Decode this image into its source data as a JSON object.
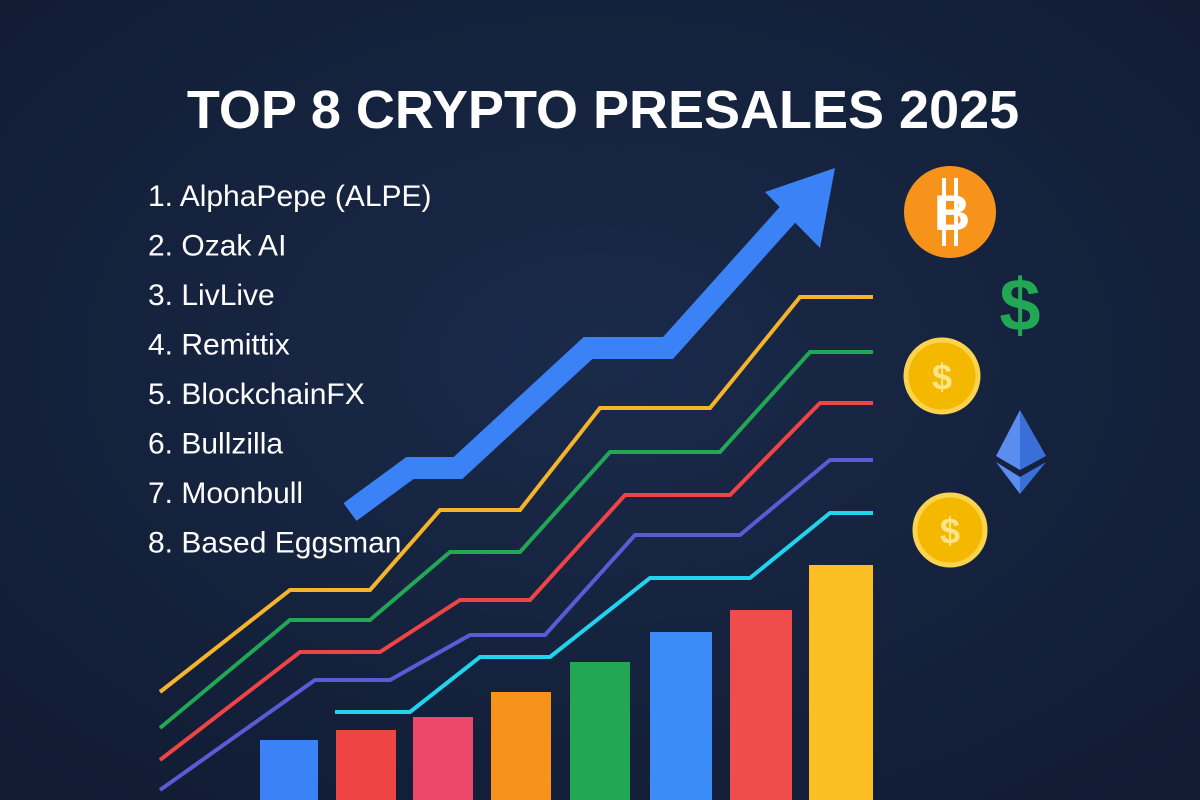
{
  "header": {
    "title": "TOP 8 CRYPTO PRESALES 2025"
  },
  "list": {
    "items": [
      "1. AlphaPepe (ALPE)",
      "2. Ozak AI",
      "3. LivLive",
      "4. Remittix",
      "5. BlockchainFX",
      "6. Bullzilla",
      "7. Moonbull",
      "8. Based Eggsman"
    ]
  },
  "icons": {
    "bitcoin": "B",
    "dollar": "$",
    "coin_1": "$",
    "coin_2": "$"
  }
}
